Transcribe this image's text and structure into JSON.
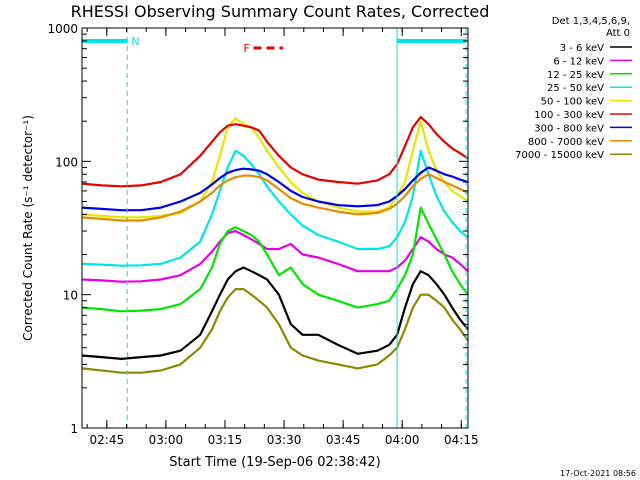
{
  "chart_data": {
    "type": "line",
    "title": "RHESSI Observing Summary Count Rates, Corrected",
    "xlabel": "Start Time (19-Sep-06 02:38:42)",
    "ylabel": "Corrected Count Rate (s⁻¹ detector⁻¹)",
    "yscale": "log",
    "ylim": [
      1,
      1000
    ],
    "xlim_minutes": [
      0,
      98
    ],
    "x_ticks": [
      {
        "label": "02:45",
        "minute": 6.3
      },
      {
        "label": "03:00",
        "minute": 21.3
      },
      {
        "label": "03:15",
        "minute": 36.3
      },
      {
        "label": "03:30",
        "minute": 51.3
      },
      {
        "label": "03:45",
        "minute": 66.3
      },
      {
        "label": "04:00",
        "minute": 81.3
      },
      {
        "label": "04:15",
        "minute": 96.3
      }
    ],
    "y_ticks": [
      {
        "label": "1",
        "value": 1
      },
      {
        "label": "10",
        "value": 10
      },
      {
        "label": "100",
        "value": 100
      },
      {
        "label": "1000",
        "value": 1000
      }
    ],
    "grid": false,
    "legend_position": "right",
    "legend_header": [
      "Det 1,3,4,5,6,9,",
      "Att 0"
    ],
    "annotations": [
      {
        "text": "N",
        "color": "#00e5e5"
      },
      {
        "text": "F",
        "color": "#e60000"
      }
    ],
    "footer_date": "17-Oct-2021 08:56",
    "time_minutes": [
      0,
      5,
      10,
      15,
      20,
      25,
      30,
      33,
      35,
      37,
      39,
      41,
      43,
      45,
      47,
      50,
      53,
      56,
      60,
      65,
      70,
      75,
      78,
      80,
      82,
      84,
      86,
      88,
      90,
      92,
      94,
      96,
      98
    ],
    "series": [
      {
        "name": "3 - 6 keV",
        "color": "#000000",
        "values": [
          3.5,
          3.4,
          3.3,
          3.4,
          3.5,
          3.8,
          5,
          7.5,
          10,
          13,
          15,
          16,
          15,
          14,
          13,
          10,
          6,
          5,
          5,
          4.2,
          3.6,
          3.8,
          4.2,
          5,
          8,
          12,
          15,
          14,
          12,
          10,
          8,
          6.5,
          5.5
        ]
      },
      {
        "name": "6 - 12 keV",
        "color": "#e600e6",
        "values": [
          13,
          12.8,
          12.5,
          12.6,
          13,
          14,
          17,
          21,
          25,
          29,
          30,
          28,
          26,
          24,
          22,
          22,
          24,
          20,
          19,
          17,
          15,
          15,
          15,
          16,
          18,
          22,
          27,
          25,
          22,
          20,
          19,
          17,
          15
        ]
      },
      {
        "name": "12 - 25 keV",
        "color": "#00e600",
        "values": [
          8,
          7.8,
          7.5,
          7.6,
          7.8,
          8.5,
          11,
          16,
          24,
          30,
          32,
          30,
          28,
          25,
          20,
          14,
          16,
          12,
          10,
          9,
          8,
          8.5,
          9,
          11,
          14,
          20,
          45,
          34,
          26,
          20,
          15,
          12,
          10
        ]
      },
      {
        "name": "25 - 50 keV",
        "color": "#00e5e5",
        "values": [
          17,
          16.8,
          16.5,
          16.6,
          17,
          19,
          25,
          40,
          60,
          90,
          120,
          110,
          95,
          80,
          65,
          50,
          40,
          33,
          28,
          25,
          22,
          22,
          23,
          27,
          35,
          55,
          120,
          80,
          55,
          42,
          35,
          30,
          27
        ]
      },
      {
        "name": "50 - 100 keV",
        "color": "#e6e600",
        "values": [
          40,
          39,
          38,
          38,
          39,
          41,
          50,
          70,
          110,
          180,
          210,
          190,
          180,
          150,
          120,
          90,
          70,
          58,
          50,
          45,
          42,
          42,
          45,
          55,
          70,
          120,
          200,
          120,
          85,
          70,
          60,
          55,
          50
        ]
      },
      {
        "name": "100 - 300 keV",
        "color": "#e60000",
        "values": [
          68,
          66,
          65,
          66,
          70,
          80,
          110,
          140,
          165,
          185,
          190,
          185,
          180,
          170,
          140,
          110,
          90,
          80,
          73,
          70,
          68,
          72,
          80,
          95,
          130,
          180,
          215,
          190,
          160,
          140,
          125,
          115,
          105
        ]
      },
      {
        "name": "300 - 800 keV",
        "color": "#0000e6",
        "values": [
          45,
          44,
          43,
          43,
          45,
          50,
          58,
          67,
          75,
          82,
          86,
          88,
          87,
          85,
          80,
          70,
          60,
          54,
          50,
          47,
          46,
          47,
          50,
          55,
          62,
          72,
          82,
          90,
          85,
          80,
          77,
          73,
          70
        ]
      },
      {
        "name": "800 - 7000 keV",
        "color": "#e68a00",
        "values": [
          38,
          37,
          36,
          36,
          38,
          42,
          50,
          58,
          66,
          72,
          76,
          78,
          78,
          76,
          72,
          62,
          53,
          48,
          45,
          42,
          40,
          41,
          44,
          48,
          55,
          65,
          74,
          80,
          75,
          70,
          66,
          62,
          58
        ]
      },
      {
        "name": "7000 - 15000 keV",
        "color": "#8a8a00",
        "values": [
          2.8,
          2.7,
          2.6,
          2.6,
          2.7,
          3,
          4,
          5.5,
          7.5,
          9.5,
          11,
          11,
          10,
          9,
          8,
          6,
          4,
          3.5,
          3.2,
          3,
          2.8,
          3,
          3.5,
          4,
          5.5,
          8,
          10,
          10,
          9,
          8,
          6.5,
          5.5,
          4.5
        ]
      }
    ],
    "observing_bars": [
      {
        "type": "night",
        "color": "#00e5e5",
        "start": 0,
        "end": 11.5,
        "label": "N"
      },
      {
        "type": "night",
        "color": "#00e5e5",
        "start": 80,
        "end": 97.5,
        "label": ""
      }
    ],
    "flare_bar": {
      "color": "#e60000",
      "start": 41,
      "end": 51,
      "dashed": true
    }
  }
}
